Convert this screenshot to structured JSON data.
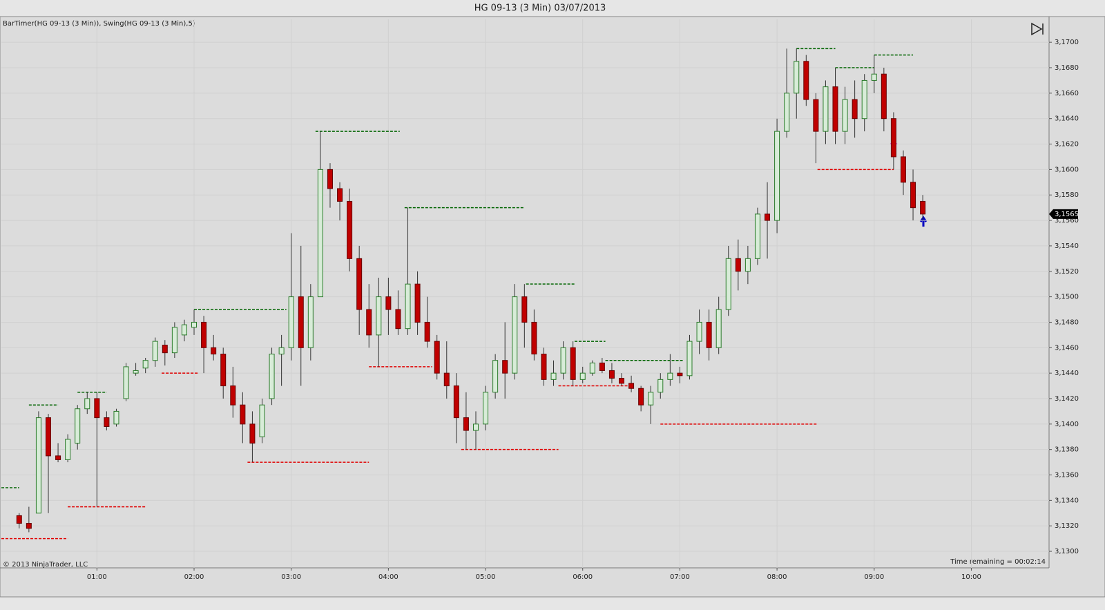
{
  "chart_data": {
    "type": "candlestick",
    "title": "HG 09-13 (3 Min)  03/07/2013",
    "indicator_label": "BarTimer(HG 09-13 (3 Min)), Swing(HG 09-13 (3 Min),5)",
    "copyright": "© 2013 NinjaTrader, LLC",
    "time_remaining": "Time remaining = 00:02:14",
    "last_price": {
      "value": 3.1565,
      "label": "3,1565"
    },
    "up_color": "#d8ecd8",
    "down_color": "#c00000",
    "swing_high_color": "#006400",
    "swing_low_color": "#e00000",
    "xlim": [
      "00:01",
      "10:48"
    ],
    "xticks": [
      "01:00",
      "02:00",
      "03:00",
      "04:00",
      "05:00",
      "06:00",
      "07:00",
      "08:00",
      "09:00",
      "10:00"
    ],
    "ylim": [
      3.1287,
      3.1718
    ],
    "yticks": [
      {
        "value": 3.13,
        "label": "3,1300"
      },
      {
        "value": 3.132,
        "label": "3,1320"
      },
      {
        "value": 3.134,
        "label": "3,1340"
      },
      {
        "value": 3.136,
        "label": "3,1360"
      },
      {
        "value": 3.138,
        "label": "3,1380"
      },
      {
        "value": 3.14,
        "label": "3,1400"
      },
      {
        "value": 3.142,
        "label": "3,1420"
      },
      {
        "value": 3.144,
        "label": "3,1440"
      },
      {
        "value": 3.146,
        "label": "3,1460"
      },
      {
        "value": 3.148,
        "label": "3,1480"
      },
      {
        "value": 3.15,
        "label": "3,1500"
      },
      {
        "value": 3.152,
        "label": "3,1520"
      },
      {
        "value": 3.154,
        "label": "3,1540"
      },
      {
        "value": 3.156,
        "label": "3,1560"
      },
      {
        "value": 3.158,
        "label": "3,1580"
      },
      {
        "value": 3.16,
        "label": "3,1600"
      },
      {
        "value": 3.162,
        "label": "3,1620"
      },
      {
        "value": 3.164,
        "label": "3,1640"
      },
      {
        "value": 3.166,
        "label": "3,1660"
      },
      {
        "value": 3.168,
        "label": "3,1680"
      },
      {
        "value": 3.17,
        "label": "3,1700"
      }
    ],
    "grid": true,
    "x": [
      "00:12",
      "00:18",
      "00:24",
      "00:30",
      "00:36",
      "00:42",
      "00:48",
      "00:54",
      "01:00",
      "01:06",
      "01:12",
      "01:18",
      "01:24",
      "01:30",
      "01:36",
      "01:42",
      "01:48",
      "01:54",
      "02:00",
      "02:06",
      "02:12",
      "02:18",
      "02:24",
      "02:30",
      "02:36",
      "02:42",
      "02:48",
      "02:54",
      "03:00",
      "03:06",
      "03:12",
      "03:18",
      "03:24",
      "03:30",
      "03:36",
      "03:42",
      "03:48",
      "03:54",
      "04:00",
      "04:06",
      "04:12",
      "04:18",
      "04:24",
      "04:30",
      "04:36",
      "04:42",
      "04:48",
      "04:54",
      "05:00",
      "05:06",
      "05:12",
      "05:18",
      "05:24",
      "05:30",
      "05:36",
      "05:42",
      "05:48",
      "05:54",
      "06:00",
      "06:06",
      "06:12",
      "06:18",
      "06:24",
      "06:30",
      "06:36",
      "06:42",
      "06:48",
      "06:54",
      "07:00",
      "07:06",
      "07:12",
      "07:18",
      "07:24",
      "07:30",
      "07:36",
      "07:42",
      "07:48",
      "07:54",
      "08:00",
      "08:06",
      "08:12",
      "08:18",
      "08:24",
      "08:30",
      "08:36",
      "08:42",
      "08:48",
      "08:54",
      "09:00",
      "09:06",
      "09:12",
      "09:18",
      "09:24",
      "09:30"
    ],
    "open": [
      3.1328,
      3.1322,
      3.133,
      3.1405,
      3.1375,
      3.1372,
      3.1385,
      3.1412,
      3.142,
      3.1405,
      3.14,
      3.142,
      3.144,
      3.1444,
      3.145,
      3.1462,
      3.1456,
      3.147,
      3.1476,
      3.148,
      3.146,
      3.1455,
      3.143,
      3.1415,
      3.14,
      3.139,
      3.142,
      3.1455,
      3.146,
      3.15,
      3.146,
      3.15,
      3.16,
      3.1585,
      3.1575,
      3.153,
      3.149,
      3.147,
      3.15,
      3.149,
      3.1475,
      3.151,
      3.148,
      3.1465,
      3.144,
      3.143,
      3.1405,
      3.1395,
      3.14,
      3.1425,
      3.145,
      3.144,
      3.15,
      3.148,
      3.1455,
      3.1435,
      3.144,
      3.146,
      3.1435,
      3.144,
      3.1448,
      3.1442,
      3.1436,
      3.1432,
      3.1428,
      3.1415,
      3.1425,
      3.1435,
      3.144,
      3.1438,
      3.1465,
      3.148,
      3.146,
      3.149,
      3.153,
      3.152,
      3.153,
      3.1565,
      3.156,
      3.163,
      3.166,
      3.1685,
      3.1655,
      3.163,
      3.1665,
      3.163,
      3.1655,
      3.164,
      3.167,
      3.1675,
      3.164,
      3.161,
      3.159,
      3.1575
    ],
    "high": [
      3.133,
      3.1335,
      3.141,
      3.1408,
      3.1385,
      3.1392,
      3.1415,
      3.1425,
      3.1425,
      3.141,
      3.1412,
      3.1448,
      3.1448,
      3.1452,
      3.1468,
      3.1466,
      3.148,
      3.1482,
      3.149,
      3.1485,
      3.147,
      3.146,
      3.1445,
      3.1425,
      3.141,
      3.142,
      3.146,
      3.147,
      3.155,
      3.154,
      3.151,
      3.163,
      3.1605,
      3.159,
      3.1585,
      3.154,
      3.151,
      3.1515,
      3.1515,
      3.1505,
      3.157,
      3.152,
      3.15,
      3.147,
      3.1465,
      3.144,
      3.1425,
      3.141,
      3.143,
      3.1455,
      3.148,
      3.151,
      3.151,
      3.149,
      3.146,
      3.145,
      3.1465,
      3.1465,
      3.1445,
      3.145,
      3.1452,
      3.1448,
      3.144,
      3.1438,
      3.143,
      3.143,
      3.144,
      3.1455,
      3.1445,
      3.147,
      3.149,
      3.149,
      3.15,
      3.154,
      3.1545,
      3.154,
      3.157,
      3.159,
      3.164,
      3.1695,
      3.1695,
      3.169,
      3.166,
      3.167,
      3.168,
      3.1665,
      3.167,
      3.1675,
      3.169,
      3.168,
      3.1645,
      3.1615,
      3.16,
      3.158
    ],
    "low": [
      3.1318,
      3.1315,
      3.133,
      3.133,
      3.137,
      3.137,
      3.138,
      3.1408,
      3.1335,
      3.1395,
      3.1398,
      3.1418,
      3.1438,
      3.144,
      3.1445,
      3.1446,
      3.1452,
      3.1465,
      3.147,
      3.144,
      3.145,
      3.142,
      3.1405,
      3.1385,
      3.137,
      3.1385,
      3.1415,
      3.143,
      3.145,
      3.143,
      3.145,
      3.15,
      3.157,
      3.156,
      3.152,
      3.147,
      3.146,
      3.1445,
      3.147,
      3.147,
      3.147,
      3.147,
      3.146,
      3.1435,
      3.142,
      3.1385,
      3.138,
      3.138,
      3.1395,
      3.142,
      3.142,
      3.1435,
      3.146,
      3.145,
      3.143,
      3.143,
      3.1435,
      3.143,
      3.1432,
      3.1438,
      3.144,
      3.1432,
      3.143,
      3.1425,
      3.141,
      3.14,
      3.142,
      3.143,
      3.1432,
      3.1435,
      3.1455,
      3.145,
      3.1455,
      3.1485,
      3.1505,
      3.151,
      3.1525,
      3.153,
      3.155,
      3.1625,
      3.164,
      3.165,
      3.1605,
      3.162,
      3.162,
      3.162,
      3.1625,
      3.163,
      3.166,
      3.163,
      3.16,
      3.158,
      3.156,
      3.156
    ],
    "close": [
      3.1322,
      3.1318,
      3.1405,
      3.1375,
      3.1372,
      3.1388,
      3.1412,
      3.142,
      3.1405,
      3.1398,
      3.141,
      3.1445,
      3.1442,
      3.145,
      3.1465,
      3.1456,
      3.1476,
      3.1478,
      3.148,
      3.146,
      3.1455,
      3.143,
      3.1415,
      3.14,
      3.1385,
      3.1415,
      3.1455,
      3.146,
      3.15,
      3.146,
      3.15,
      3.16,
      3.1585,
      3.1575,
      3.153,
      3.149,
      3.147,
      3.15,
      3.149,
      3.1475,
      3.151,
      3.148,
      3.1465,
      3.144,
      3.143,
      3.1405,
      3.1395,
      3.14,
      3.1425,
      3.145,
      3.144,
      3.15,
      3.148,
      3.1455,
      3.1435,
      3.144,
      3.146,
      3.1435,
      3.144,
      3.1448,
      3.1442,
      3.1436,
      3.1432,
      3.1428,
      3.1415,
      3.1425,
      3.1435,
      3.144,
      3.1438,
      3.1465,
      3.148,
      3.146,
      3.149,
      3.153,
      3.152,
      3.153,
      3.1565,
      3.156,
      3.163,
      3.166,
      3.1685,
      3.1655,
      3.163,
      3.1665,
      3.163,
      3.1655,
      3.164,
      3.167,
      3.1675,
      3.164,
      3.161,
      3.159,
      3.157,
      3.1565
    ],
    "swing_highs": [
      {
        "price": 3.135,
        "from": "00:01",
        "to": "00:12"
      },
      {
        "price": 3.1415,
        "from": "00:18",
        "to": "00:36"
      },
      {
        "price": 3.1425,
        "from": "00:48",
        "to": "01:06"
      },
      {
        "price": 3.149,
        "from": "02:00",
        "to": "02:57"
      },
      {
        "price": 3.163,
        "from": "03:15",
        "to": "04:07"
      },
      {
        "price": 3.157,
        "from": "04:10",
        "to": "05:24"
      },
      {
        "price": 3.151,
        "from": "05:25",
        "to": "05:55"
      },
      {
        "price": 3.1465,
        "from": "05:55",
        "to": "06:14"
      },
      {
        "price": 3.145,
        "from": "06:14",
        "to": "07:02"
      },
      {
        "price": 3.1695,
        "from": "08:12",
        "to": "08:36"
      },
      {
        "price": 3.168,
        "from": "08:36",
        "to": "09:00"
      },
      {
        "price": 3.169,
        "from": "09:00",
        "to": "09:24"
      }
    ],
    "swing_lows": [
      {
        "price": 3.131,
        "from": "00:01",
        "to": "00:42"
      },
      {
        "price": 3.1335,
        "from": "00:42",
        "to": "01:30"
      },
      {
        "price": 3.144,
        "from": "01:40",
        "to": "02:03"
      },
      {
        "price": 3.137,
        "from": "02:33",
        "to": "03:48"
      },
      {
        "price": 3.1445,
        "from": "03:48",
        "to": "04:27"
      },
      {
        "price": 3.138,
        "from": "04:45",
        "to": "05:45"
      },
      {
        "price": 3.143,
        "from": "05:45",
        "to": "06:30"
      },
      {
        "price": 3.14,
        "from": "06:48",
        "to": "08:25"
      },
      {
        "price": 3.16,
        "from": "08:25",
        "to": "09:12"
      }
    ]
  }
}
